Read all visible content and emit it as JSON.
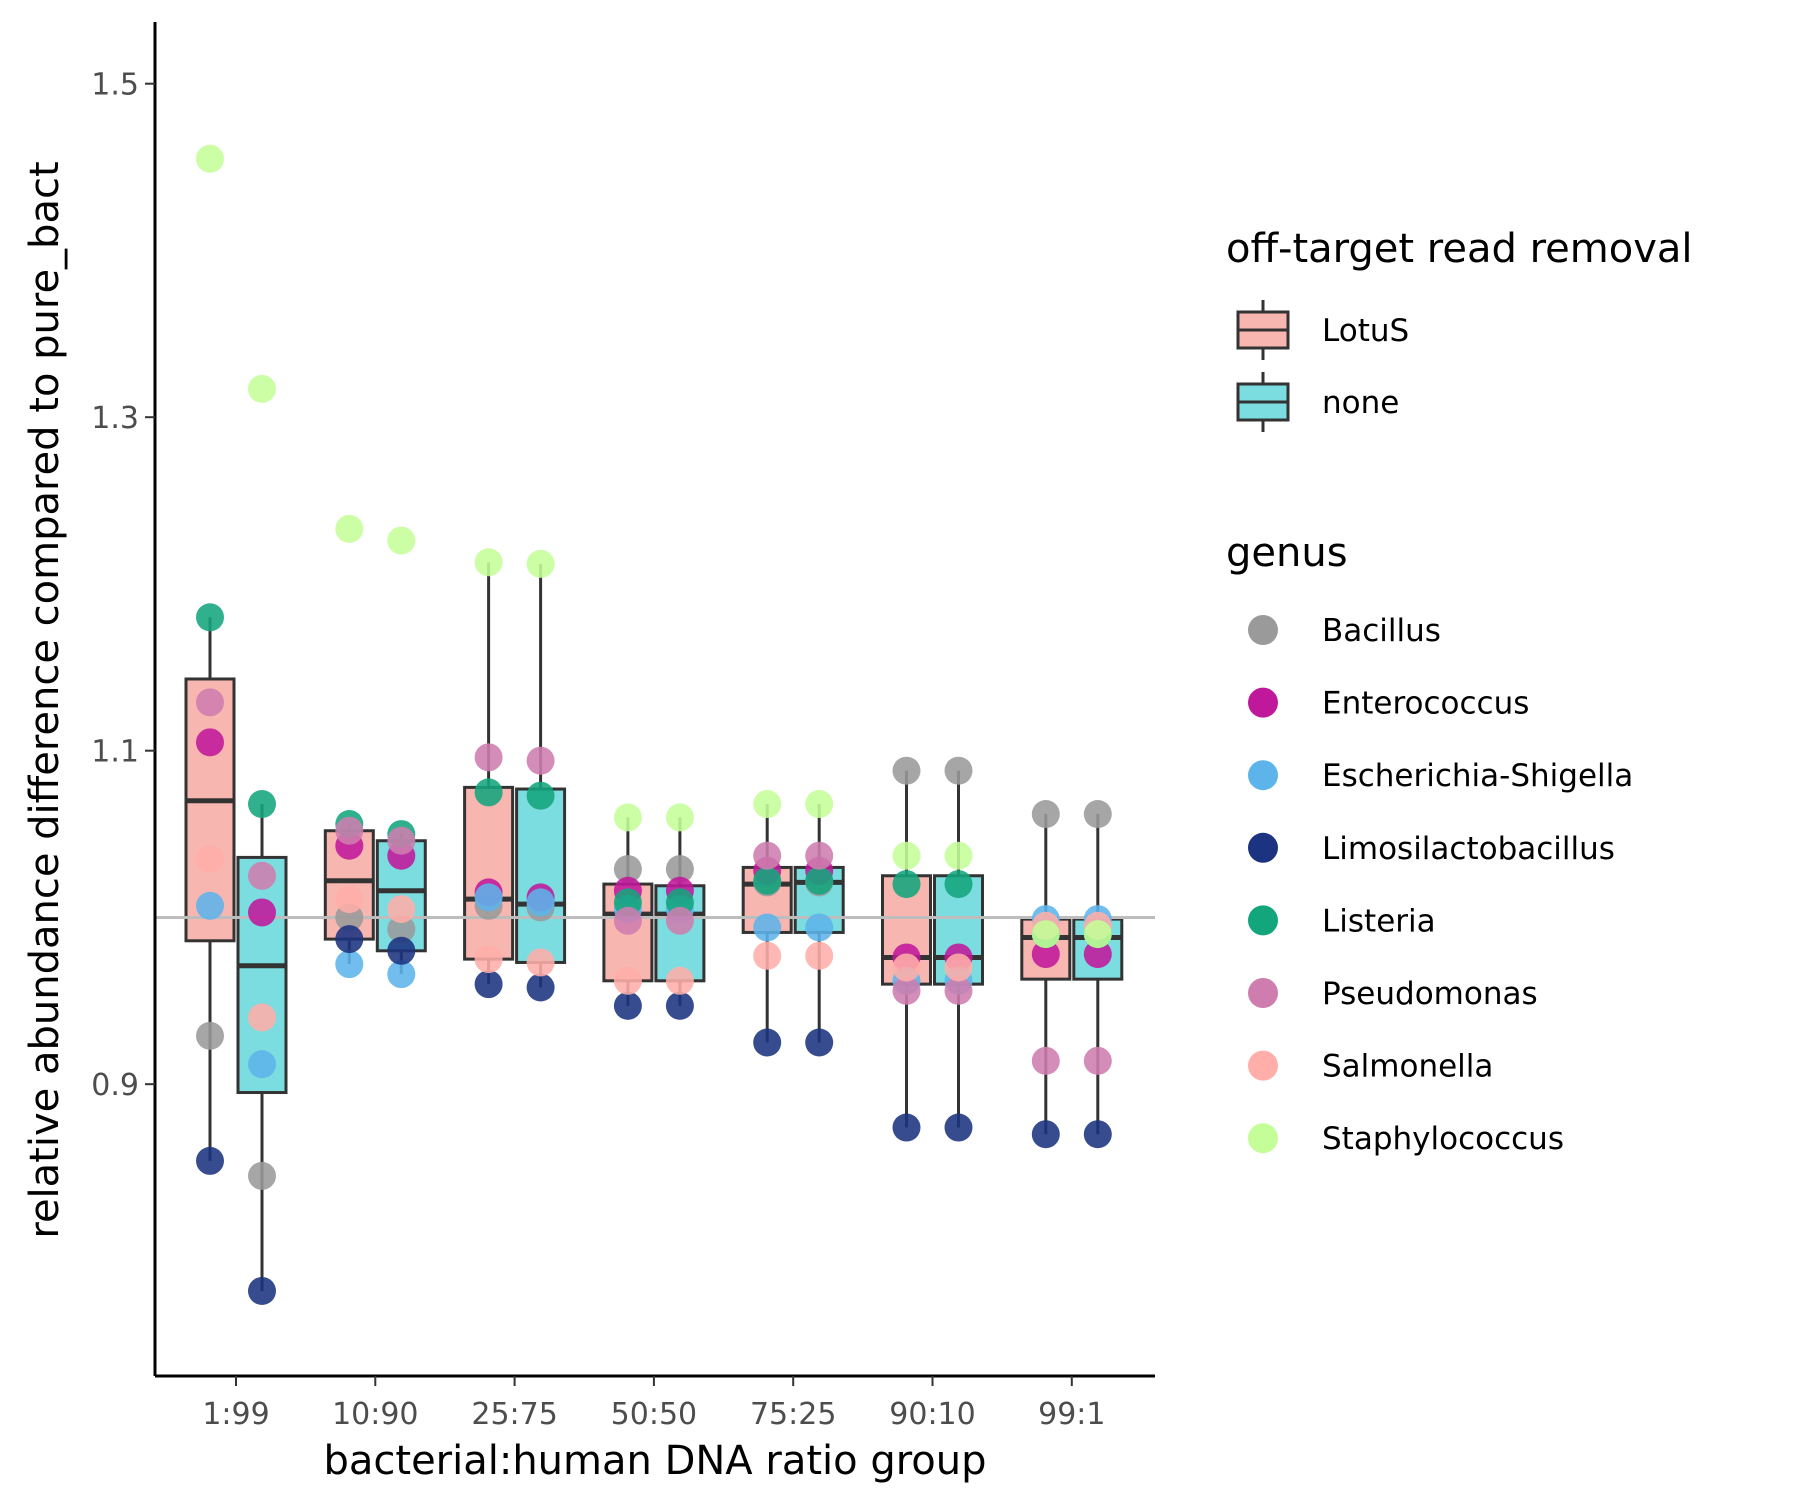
{
  "chart_data": {
    "type": "box",
    "xlabel": "bacterial:human DNA ratio group",
    "ylabel": "relative abundance difference compared to pure_bact",
    "categories": [
      "1:99",
      "10:90",
      "25:75",
      "50:50",
      "75:25",
      "90:10",
      "99:1"
    ],
    "y_ticks": [
      "0.9",
      "1.1",
      "1.3",
      "1.5"
    ],
    "ylim": [
      0.725,
      1.537
    ],
    "reference_line": 1.0,
    "grid": false,
    "legend_position": "right",
    "fill_legend": {
      "title": "off-target read removal",
      "items": [
        {
          "label": "LotuS",
          "color": "#F8B6B0"
        },
        {
          "label": "none",
          "color": "#7BDDE0"
        }
      ]
    },
    "color_legend": {
      "title": "genus",
      "items": [
        {
          "label": "Bacillus",
          "color": "#9a9a9a"
        },
        {
          "label": "Enterococcus",
          "color": "#C0189B"
        },
        {
          "label": "Escherichia-Shigella",
          "color": "#5DB4EA"
        },
        {
          "label": "Limosilactobacillus",
          "color": "#1B3380"
        },
        {
          "label": "Listeria",
          "color": "#13A57C"
        },
        {
          "label": "Pseudomonas",
          "color": "#CE7DAE"
        },
        {
          "label": "Salmonella",
          "color": "#FFAEA9"
        },
        {
          "label": "Staphylococcus",
          "color": "#C5FE98"
        }
      ]
    },
    "series": [
      {
        "name": "LotuS",
        "boxes": [
          {
            "q1": 0.986,
            "median": 1.07,
            "q3": 1.143,
            "lower": 0.854,
            "upper": 1.18
          },
          {
            "q1": 0.987,
            "median": 1.022,
            "q3": 1.052,
            "lower": 0.972,
            "upper": 1.056
          },
          {
            "q1": 0.975,
            "median": 1.011,
            "q3": 1.078,
            "lower": 0.96,
            "upper": 1.213
          },
          {
            "q1": 0.962,
            "median": 1.002,
            "q3": 1.02,
            "lower": 0.947,
            "upper": 1.06
          },
          {
            "q1": 0.991,
            "median": 1.02,
            "q3": 1.03,
            "lower": 0.925,
            "upper": 1.068
          },
          {
            "q1": 0.96,
            "median": 0.976,
            "q3": 1.025,
            "lower": 0.874,
            "upper": 1.088
          },
          {
            "q1": 0.963,
            "median": 0.988,
            "q3": 0.999,
            "lower": 0.87,
            "upper": 1.062
          }
        ]
      },
      {
        "name": "none",
        "boxes": [
          {
            "q1": 0.895,
            "median": 0.971,
            "q3": 1.036,
            "lower": 0.776,
            "upper": 1.068
          },
          {
            "q1": 0.98,
            "median": 1.016,
            "q3": 1.046,
            "lower": 0.966,
            "upper": 1.05
          },
          {
            "q1": 0.973,
            "median": 1.008,
            "q3": 1.077,
            "lower": 0.958,
            "upper": 1.212
          },
          {
            "q1": 0.962,
            "median": 1.002,
            "q3": 1.019,
            "lower": 0.947,
            "upper": 1.06
          },
          {
            "q1": 0.991,
            "median": 1.021,
            "q3": 1.03,
            "lower": 0.925,
            "upper": 1.068
          },
          {
            "q1": 0.96,
            "median": 0.976,
            "q3": 1.025,
            "lower": 0.874,
            "upper": 1.088
          },
          {
            "q1": 0.963,
            "median": 0.988,
            "q3": 0.999,
            "lower": 0.87,
            "upper": 1.062
          }
        ]
      }
    ],
    "points": [
      {
        "category": "1:99",
        "group": "LotuS",
        "values": {
          "Bacillus": 0.929,
          "Enterococcus": 1.105,
          "Escherichia-Shigella": 1.007,
          "Limosilactobacillus": 0.854,
          "Listeria": 1.18,
          "Pseudomonas": 1.129,
          "Salmonella": 1.035,
          "Staphylococcus": 1.455
        }
      },
      {
        "category": "1:99",
        "group": "none",
        "values": {
          "Bacillus": 0.845,
          "Enterococcus": 1.003,
          "Escherichia-Shigella": 0.912,
          "Limosilactobacillus": 0.776,
          "Listeria": 1.068,
          "Pseudomonas": 1.025,
          "Salmonella": 0.94,
          "Staphylococcus": 1.317
        }
      },
      {
        "category": "10:90",
        "group": "LotuS",
        "values": {
          "Bacillus": 1.0,
          "Enterococcus": 1.043,
          "Escherichia-Shigella": 0.972,
          "Limosilactobacillus": 0.987,
          "Listeria": 1.056,
          "Pseudomonas": 1.052,
          "Salmonella": 1.011,
          "Staphylococcus": 1.233
        }
      },
      {
        "category": "10:90",
        "group": "none",
        "values": {
          "Bacillus": 0.993,
          "Enterococcus": 1.037,
          "Escherichia-Shigella": 0.966,
          "Limosilactobacillus": 0.98,
          "Listeria": 1.05,
          "Pseudomonas": 1.046,
          "Salmonella": 1.005,
          "Staphylococcus": 1.226
        }
      },
      {
        "category": "25:75",
        "group": "LotuS",
        "values": {
          "Bacillus": 1.007,
          "Enterococcus": 1.015,
          "Escherichia-Shigella": 1.012,
          "Limosilactobacillus": 0.96,
          "Listeria": 1.075,
          "Pseudomonas": 1.096,
          "Salmonella": 0.975,
          "Staphylococcus": 1.213
        }
      },
      {
        "category": "25:75",
        "group": "none",
        "values": {
          "Bacillus": 1.006,
          "Enterococcus": 1.012,
          "Escherichia-Shigella": 1.009,
          "Limosilactobacillus": 0.958,
          "Listeria": 1.073,
          "Pseudomonas": 1.094,
          "Salmonella": 0.973,
          "Staphylococcus": 1.212
        }
      },
      {
        "category": "50:50",
        "group": "LotuS",
        "values": {
          "Bacillus": 1.029,
          "Enterococcus": 1.016,
          "Escherichia-Shigella": 1.005,
          "Limosilactobacillus": 0.947,
          "Listeria": 1.009,
          "Pseudomonas": 0.998,
          "Salmonella": 0.962,
          "Staphylococcus": 1.06
        }
      },
      {
        "category": "50:50",
        "group": "none",
        "values": {
          "Bacillus": 1.029,
          "Enterococcus": 1.016,
          "Escherichia-Shigella": 1.005,
          "Limosilactobacillus": 0.947,
          "Listeria": 1.009,
          "Pseudomonas": 0.998,
          "Salmonella": 0.962,
          "Staphylococcus": 1.06
        }
      },
      {
        "category": "75:25",
        "group": "LotuS",
        "values": {
          "Bacillus": 1.021,
          "Enterococcus": 1.028,
          "Escherichia-Shigella": 0.994,
          "Limosilactobacillus": 0.925,
          "Listeria": 1.022,
          "Pseudomonas": 1.037,
          "Salmonella": 0.977,
          "Staphylococcus": 1.068
        }
      },
      {
        "category": "75:25",
        "group": "none",
        "values": {
          "Bacillus": 1.021,
          "Enterococcus": 1.028,
          "Escherichia-Shigella": 0.994,
          "Limosilactobacillus": 0.925,
          "Listeria": 1.022,
          "Pseudomonas": 1.037,
          "Salmonella": 0.977,
          "Staphylococcus": 1.068
        }
      },
      {
        "category": "90:10",
        "group": "LotuS",
        "values": {
          "Bacillus": 1.088,
          "Enterococcus": 0.976,
          "Escherichia-Shigella": 0.962,
          "Limosilactobacillus": 0.874,
          "Listeria": 1.02,
          "Pseudomonas": 0.956,
          "Salmonella": 0.97,
          "Staphylococcus": 1.037
        }
      },
      {
        "category": "90:10",
        "group": "none",
        "values": {
          "Bacillus": 1.088,
          "Enterococcus": 0.976,
          "Escherichia-Shigella": 0.962,
          "Limosilactobacillus": 0.874,
          "Listeria": 1.02,
          "Pseudomonas": 0.956,
          "Salmonella": 0.97,
          "Staphylococcus": 1.037
        }
      },
      {
        "category": "99:1",
        "group": "LotuS",
        "values": {
          "Bacillus": 1.062,
          "Enterococcus": 0.978,
          "Escherichia-Shigella": 0.999,
          "Limosilactobacillus": 0.87,
          "Listeria": 0.99,
          "Pseudomonas": 0.914,
          "Salmonella": 0.995,
          "Staphylococcus": 0.99
        }
      },
      {
        "category": "99:1",
        "group": "none",
        "values": {
          "Bacillus": 1.062,
          "Enterococcus": 0.978,
          "Escherichia-Shigella": 0.999,
          "Limosilactobacillus": 0.87,
          "Listeria": 0.99,
          "Pseudomonas": 0.914,
          "Salmonella": 0.995,
          "Staphylococcus": 0.99
        }
      }
    ]
  }
}
